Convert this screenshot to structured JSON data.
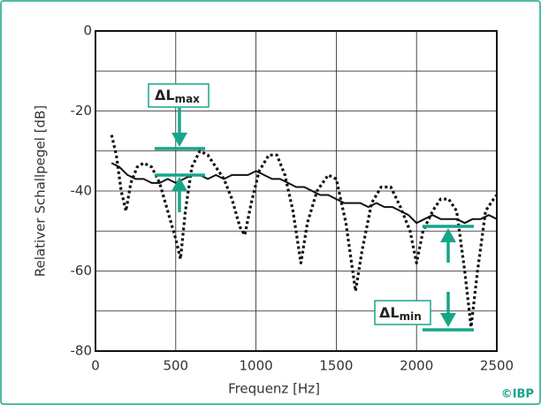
{
  "chart_data": {
    "type": "line",
    "x_label": "Frequenz [Hz]",
    "y_label": "Relativer Schallpegel [dB]",
    "xlim": [
      0,
      2500
    ],
    "xticks": [
      0,
      500,
      1000,
      1500,
      2000,
      2500
    ],
    "ylim": [
      -80,
      0
    ],
    "yticks": [
      0,
      -20,
      -40,
      -60,
      -80
    ],
    "yminor": [
      -10,
      -30,
      -50,
      -70
    ],
    "grid": true,
    "series": [
      {
        "color": "#111111",
        "style": "solid",
        "x": [
          100,
          150,
          200,
          250,
          300,
          350,
          400,
          450,
          500,
          550,
          600,
          650,
          700,
          750,
          800,
          850,
          900,
          950,
          1000,
          1050,
          1100,
          1150,
          1200,
          1250,
          1300,
          1350,
          1400,
          1450,
          1500,
          1550,
          1600,
          1650,
          1700,
          1750,
          1800,
          1850,
          1900,
          1950,
          2000,
          2050,
          2100,
          2150,
          2200,
          2250,
          2300,
          2350,
          2400,
          2450,
          2500
        ],
        "values": [
          -33,
          -34,
          -36,
          -37,
          -37,
          -38,
          -38,
          -37,
          -38,
          -37,
          -36,
          -36,
          -37,
          -36,
          -37,
          -36,
          -36,
          -36,
          -35,
          -36,
          -37,
          -37,
          -38,
          -39,
          -39,
          -40,
          -41,
          -41,
          -42,
          -43,
          -43,
          -43,
          -44,
          -43,
          -44,
          -44,
          -45,
          -46,
          -48,
          -47,
          -46,
          -47,
          -47,
          -47,
          -48,
          -47,
          -47,
          -46,
          -47
        ]
      },
      {
        "color": "#111111",
        "style": "dotted",
        "x": [
          100,
          130,
          160,
          190,
          220,
          260,
          300,
          350,
          400,
          450,
          500,
          530,
          560,
          600,
          650,
          700,
          750,
          800,
          850,
          900,
          930,
          970,
          1020,
          1080,
          1130,
          1180,
          1230,
          1280,
          1320,
          1380,
          1450,
          1500,
          1560,
          1620,
          1660,
          1720,
          1780,
          1840,
          1900,
          1960,
          2000,
          2040,
          2100,
          2150,
          2200,
          2250,
          2300,
          2340,
          2380,
          2430,
          2480,
          2500
        ],
        "values": [
          -26,
          -31,
          -40,
          -45,
          -38,
          -34,
          -33,
          -34,
          -38,
          -45,
          -52,
          -57,
          -45,
          -34,
          -30,
          -31,
          -34,
          -37,
          -42,
          -49,
          -51,
          -43,
          -35,
          -31,
          -31,
          -36,
          -45,
          -58,
          -48,
          -40,
          -36,
          -37,
          -48,
          -65,
          -55,
          -43,
          -39,
          -39,
          -44,
          -50,
          -58,
          -50,
          -45,
          -42,
          -42,
          -45,
          -60,
          -74,
          -60,
          -45,
          -42,
          -41
        ]
      }
    ],
    "annotations": [
      {
        "text": "ΔL",
        "sub": "max"
      },
      {
        "text": "ΔL",
        "sub": "min"
      }
    ],
    "credit": "©IBP"
  }
}
